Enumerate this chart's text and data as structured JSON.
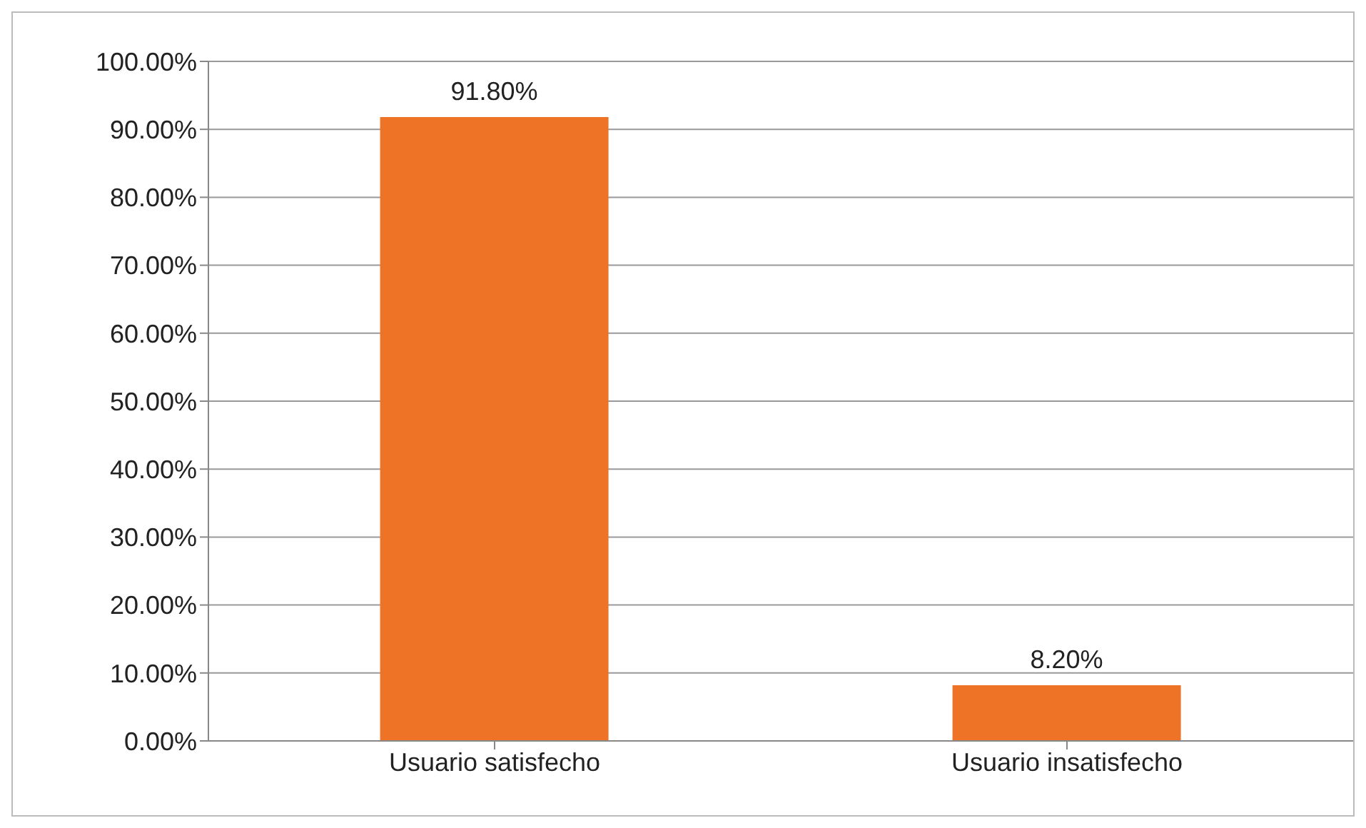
{
  "chart_data": {
    "type": "bar",
    "categories": [
      "Usuario satisfecho",
      "Usuario insatisfecho"
    ],
    "values": [
      91.8,
      8.2
    ],
    "value_labels": [
      "91.80%",
      "8.20%"
    ],
    "color": "#ee7326",
    "ylim": [
      0,
      100
    ],
    "yticks": [
      {
        "value": 0,
        "label": "0.00%"
      },
      {
        "value": 10,
        "label": "10.00%"
      },
      {
        "value": 20,
        "label": "20.00%"
      },
      {
        "value": 30,
        "label": "30.00%"
      },
      {
        "value": 40,
        "label": "40.00%"
      },
      {
        "value": 50,
        "label": "50.00%"
      },
      {
        "value": 60,
        "label": "60.00%"
      },
      {
        "value": 70,
        "label": "70.00%"
      },
      {
        "value": 80,
        "label": "80.00%"
      },
      {
        "value": 90,
        "label": "90.00%"
      },
      {
        "value": 100,
        "label": "100.00%"
      }
    ],
    "grid": "y"
  }
}
